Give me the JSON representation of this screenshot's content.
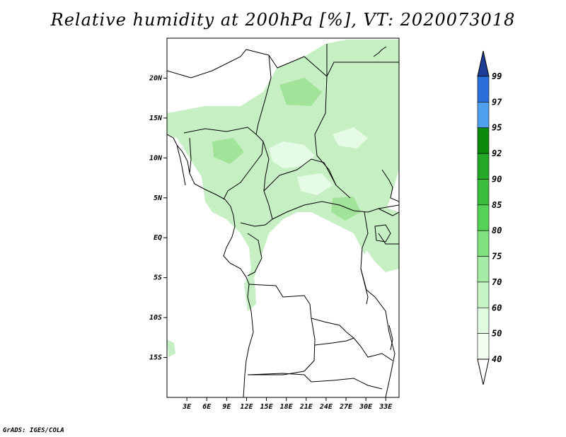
{
  "title": "Relative humidity at 200hPa [%], VT: 2020073018",
  "credit": "GrADS: IGES/COLA",
  "map": {
    "lat_labels": [
      "20N",
      "15N",
      "10N",
      "5N",
      "EQ",
      "5S",
      "10S",
      "15S"
    ],
    "lon_labels": [
      "3E",
      "6E",
      "9E",
      "12E",
      "15E",
      "18E",
      "21E",
      "24E",
      "27E",
      "30E",
      "33E"
    ],
    "extent": {
      "lon_min": 0,
      "lon_max": 35,
      "lat_min": -20,
      "lat_max": 25
    }
  },
  "legend": {
    "levels": [
      "99",
      "97",
      "95",
      "92",
      "90",
      "85",
      "80",
      "75",
      "70",
      "60",
      "50",
      "40"
    ],
    "colors": [
      "#1e3c96",
      "#2a70d8",
      "#4ea0ec",
      "#0b8a0b",
      "#25a825",
      "#3cbe3c",
      "#56d256",
      "#82e282",
      "#a6eca6",
      "#c6f4c6",
      "#e0fbe0",
      "#f3fff3",
      "#ffffff"
    ]
  },
  "colors": {
    "rh_light": "#e6fbe6",
    "rh_mid": "#c6f0c4",
    "rh_high": "#a2e39a"
  }
}
